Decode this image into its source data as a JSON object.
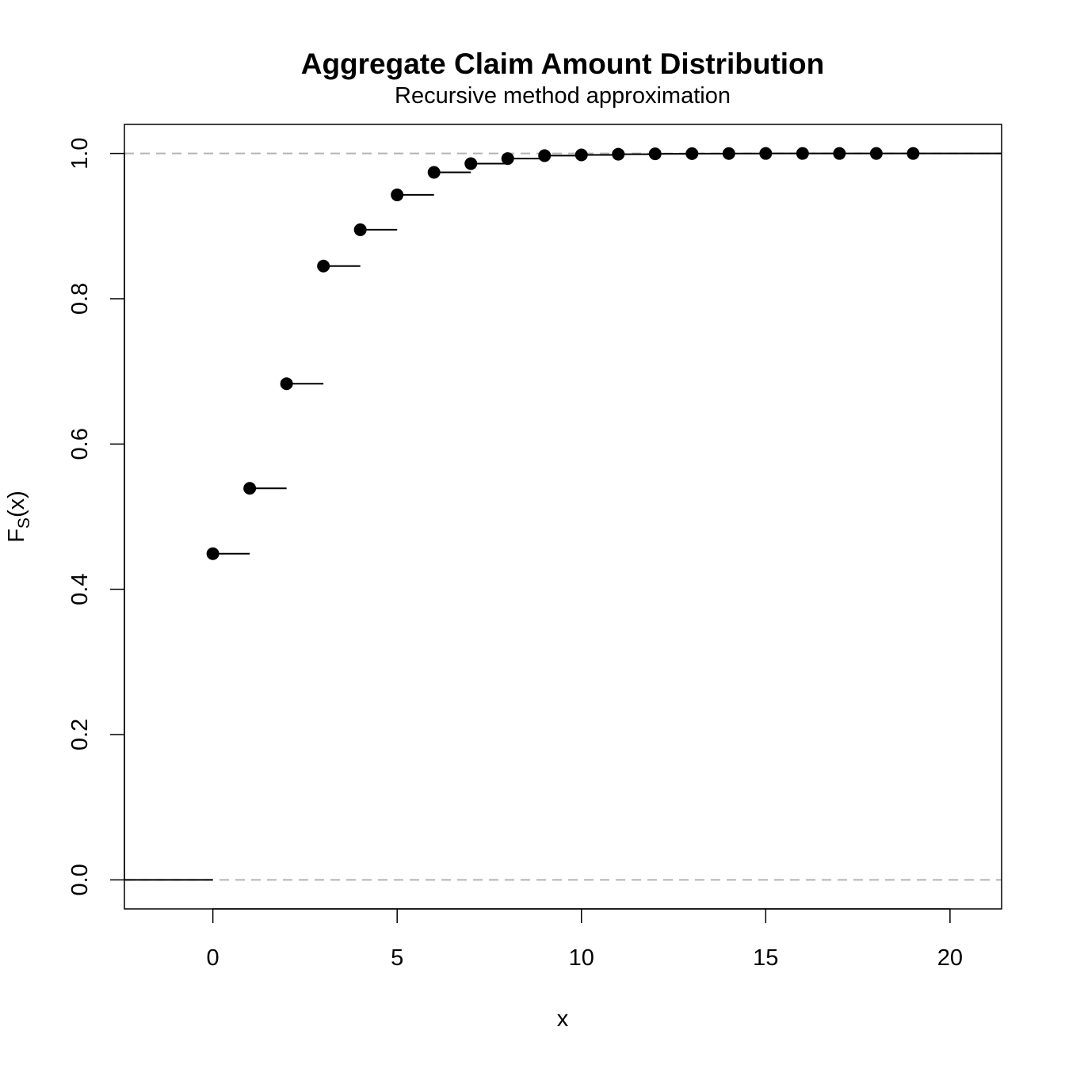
{
  "chart_data": {
    "type": "step",
    "title": "Aggregate Claim Amount Distribution",
    "subtitle": "Recursive method approximation",
    "xlabel": "x",
    "ylabel_main": "F",
    "ylabel_sub": "S",
    "ylabel_suffix": "(x)",
    "xlim": [
      -2.4,
      21.4
    ],
    "ylim": [
      -0.04,
      1.04
    ],
    "xticks": [
      0,
      5,
      10,
      15,
      20
    ],
    "yticks": [
      0.0,
      0.2,
      0.4,
      0.6,
      0.8,
      1.0
    ],
    "ytick_labels": [
      "0.0",
      "0.2",
      "0.4",
      "0.6",
      "0.8",
      "1.0"
    ],
    "reference_lines": [
      0,
      1
    ],
    "x": [
      0,
      1,
      2,
      3,
      4,
      5,
      6,
      7,
      8,
      9,
      10,
      11,
      12,
      13,
      14,
      15,
      16,
      17,
      18,
      19
    ],
    "y": [
      0.449,
      0.539,
      0.683,
      0.845,
      0.895,
      0.943,
      0.974,
      0.986,
      0.993,
      0.997,
      0.998,
      0.999,
      0.9995,
      0.9998,
      0.9999,
      1.0,
      1.0,
      1.0,
      1.0,
      1.0
    ],
    "colors": {
      "points": "#000000",
      "reference": "#b3b3b3",
      "axes": "#000000"
    }
  }
}
